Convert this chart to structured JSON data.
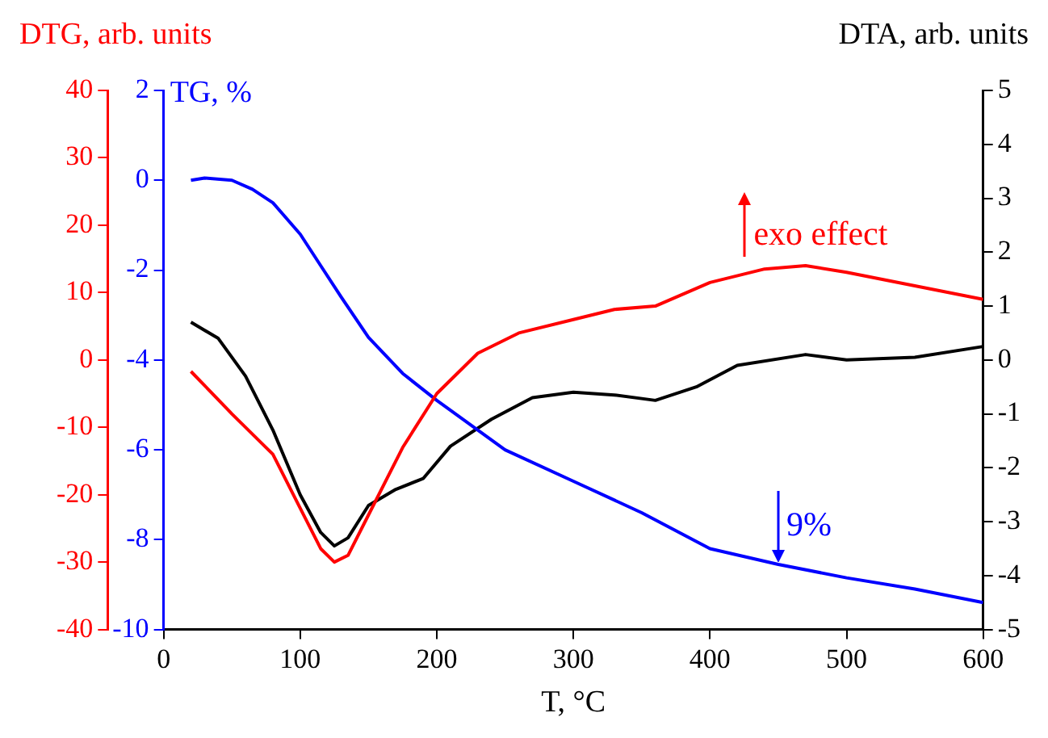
{
  "chart_data": {
    "type": "line",
    "xlabel": "T, °C",
    "ylabel": "TG, %",
    "y2label": "DTA, arb. units",
    "y3label": "DTG, arb. units",
    "xlim": [
      0,
      600
    ],
    "xticks": [
      0,
      100,
      200,
      300,
      400,
      500,
      600
    ],
    "ylim": [
      -10,
      2
    ],
    "yticks": [
      -10,
      -8,
      -6,
      -4,
      -2,
      0,
      2
    ],
    "y2lim": [
      -5,
      5
    ],
    "y2ticks": [
      -5,
      -4,
      -3,
      -2,
      -1,
      0,
      1,
      2,
      3,
      4,
      5
    ],
    "y3lim": [
      -40,
      40
    ],
    "y3ticks": [
      -40,
      -30,
      -20,
      -10,
      0,
      10,
      20,
      30,
      40
    ],
    "grid": false,
    "legend": false,
    "marker": "none",
    "line_style": "solid",
    "annotations": [
      "exo effect",
      "9%"
    ],
    "series": [
      {
        "color": "#ff0000",
        "axis": "y3",
        "x": [
          20,
          50,
          80,
          100,
          115,
          125,
          135,
          150,
          175,
          200,
          230,
          260,
          300,
          330,
          360,
          400,
          440,
          470,
          500,
          550,
          600
        ],
        "values": [
          -1.7,
          -8,
          -14,
          -22,
          -28,
          -30,
          -29,
          -23,
          -13,
          -5,
          1,
          4,
          6,
          7.5,
          8,
          11.5,
          13.5,
          14,
          13,
          11,
          9
        ]
      },
      {
        "color": "#0000ff",
        "x": [
          20,
          30,
          50,
          65,
          80,
          100,
          115,
          130,
          150,
          175,
          200,
          250,
          300,
          350,
          400,
          450,
          500,
          550,
          600
        ],
        "values": [
          0,
          0.05,
          0,
          -0.2,
          -0.5,
          -1.2,
          -1.9,
          -2.6,
          -3.5,
          -4.3,
          -4.9,
          -6,
          -6.7,
          -7.4,
          -8.2,
          -8.55,
          -8.85,
          -9.1,
          -9.4
        ]
      },
      {
        "color": "#000000",
        "axis": "y2",
        "x": [
          20,
          40,
          60,
          80,
          100,
          115,
          125,
          135,
          150,
          170,
          190,
          210,
          240,
          270,
          300,
          330,
          360,
          390,
          420,
          470,
          500,
          550,
          600
        ],
        "values": [
          0.7,
          0.4,
          -0.3,
          -1.3,
          -2.5,
          -3.2,
          -3.45,
          -3.3,
          -2.7,
          -2.4,
          -2.2,
          -1.6,
          -1.1,
          -0.7,
          -0.6,
          -0.65,
          -0.75,
          -0.5,
          -0.1,
          0.1,
          0,
          0.05,
          0.25
        ]
      }
    ]
  }
}
